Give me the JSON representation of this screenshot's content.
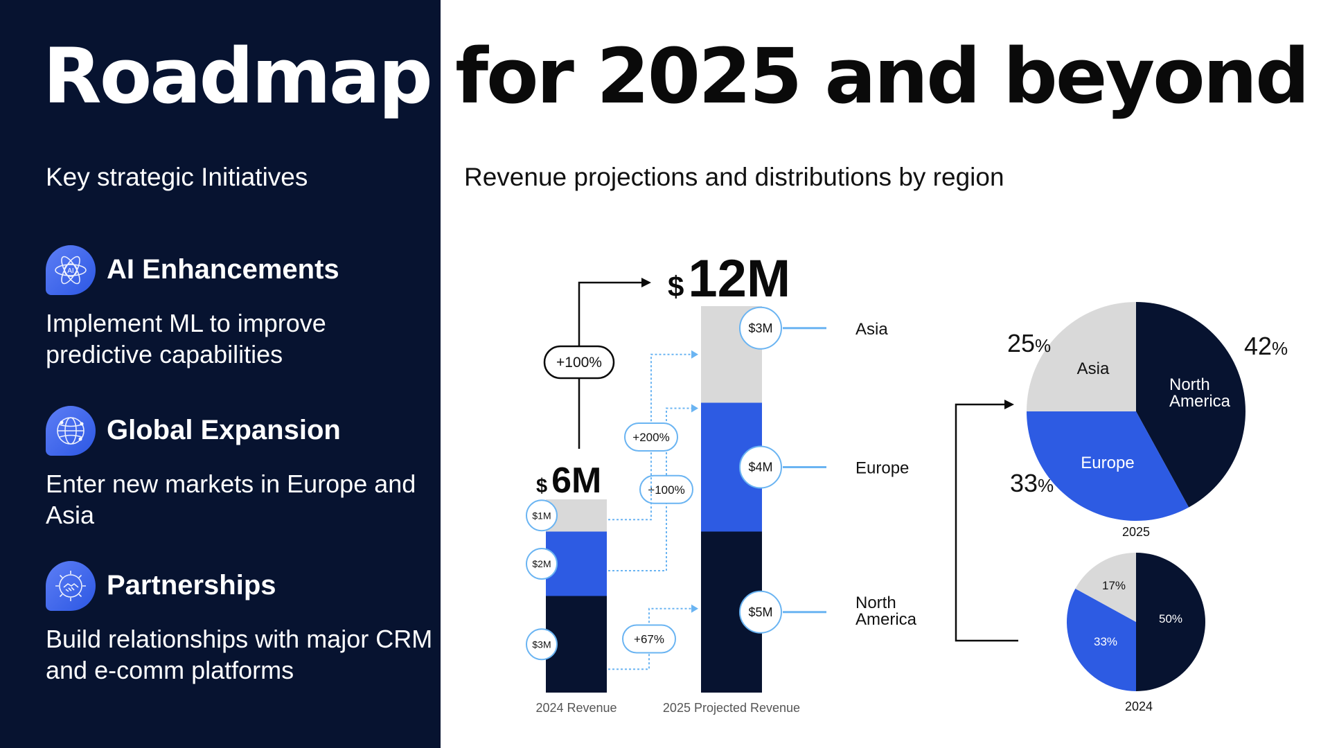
{
  "header": {
    "title_part1": "Roadmap",
    "title_part2": "for 2025 and beyond"
  },
  "left": {
    "subtitle": "Key strategic Initiatives",
    "initiatives": [
      {
        "icon": "ai-atom-icon",
        "title": "AI Enhancements",
        "description": "Implement ML to improve predictive capabilities"
      },
      {
        "icon": "globe-network-icon",
        "title": "Global Expansion",
        "description": "Enter new markets in Europe and Asia"
      },
      {
        "icon": "handshake-gear-icon",
        "title": "Partnerships",
        "description": "Build relationships with major CRM and e-comm platforms"
      }
    ]
  },
  "right": {
    "subtitle": "Revenue projections and distributions by region"
  },
  "colors": {
    "navy": "#071330",
    "blue": "#2d5be3",
    "gray": "#d9d9d9",
    "light_blue": "#6ab4f2",
    "icon_blue": "#2c57e3"
  },
  "chart_data": [
    {
      "type": "bar",
      "subtype": "stacked",
      "categories": [
        "2024 Revenue",
        "2025 Projected Revenue"
      ],
      "series": [
        {
          "name": "North America",
          "values": [
            3,
            5
          ],
          "value_labels": [
            "$3M",
            "$5M"
          ],
          "growth_label": "+67%"
        },
        {
          "name": "Europe",
          "values": [
            2,
            4
          ],
          "value_labels": [
            "$2M",
            "$4M"
          ],
          "growth_label": "+100%"
        },
        {
          "name": "Asia",
          "values": [
            1,
            3
          ],
          "value_labels": [
            "$1M",
            "$3M"
          ],
          "growth_label": "+200%"
        }
      ],
      "totals": [
        {
          "currency": "$",
          "amount": "6M"
        },
        {
          "currency": "$",
          "amount": "12M"
        }
      ],
      "total_growth_label": "+100%",
      "ylim": [
        0,
        12
      ]
    },
    {
      "type": "pie",
      "year_label": "2025",
      "slices": [
        {
          "label": "North America",
          "value": 42,
          "display": "42",
          "pct": "%"
        },
        {
          "label": "Europe",
          "value": 33,
          "display": "33",
          "pct": "%"
        },
        {
          "label": "Asia",
          "value": 25,
          "display": "25",
          "pct": "%"
        }
      ]
    },
    {
      "type": "pie",
      "year_label": "2024",
      "slices": [
        {
          "label": "North America",
          "value": 50,
          "display": "50%"
        },
        {
          "label": "Europe",
          "value": 33,
          "display": "33%"
        },
        {
          "label": "Asia",
          "value": 17,
          "display": "17%"
        }
      ]
    }
  ]
}
